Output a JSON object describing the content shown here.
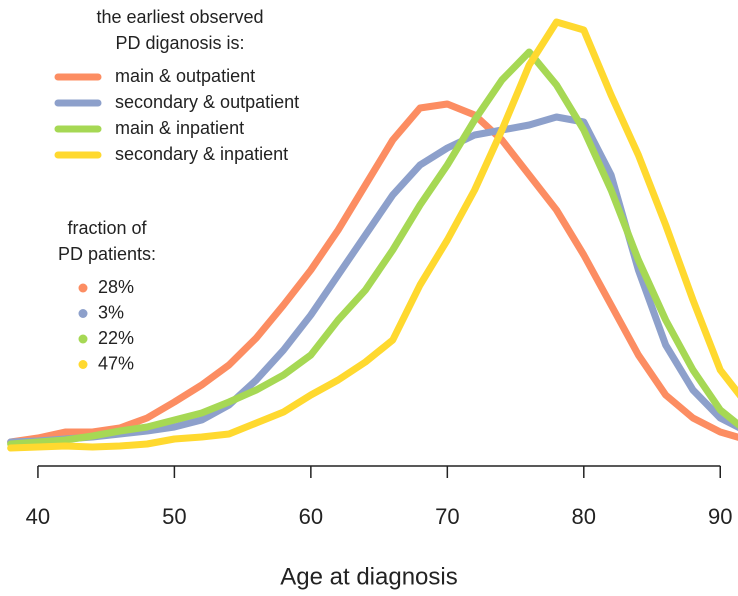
{
  "chart_data": {
    "type": "line",
    "x_label": "Age at diagnosis",
    "x": [
      38,
      40,
      42,
      44,
      46,
      48,
      50,
      52,
      54,
      56,
      58,
      60,
      62,
      64,
      66,
      68,
      70,
      72,
      74,
      76,
      78,
      80,
      82,
      84,
      86,
      88,
      90,
      92
    ],
    "xlim": [
      38.1,
      91.3
    ],
    "xticks": [
      40,
      50,
      60,
      70,
      80,
      90
    ],
    "ylim": [
      0,
      44.2
    ],
    "legend_title": [
      "the earliest observed",
      "PD diganosis is:"
    ],
    "series": [
      {
        "name": "main & outpatient",
        "color": "#fc8d62",
        "values": [
          1.0,
          1.4,
          2.0,
          2.0,
          2.4,
          3.4,
          5.0,
          6.7,
          8.7,
          11.4,
          14.7,
          18.2,
          22.2,
          26.7,
          31.2,
          34.4,
          34.8,
          33.7,
          31.2,
          27.7,
          24.2,
          19.7,
          14.7,
          9.7,
          5.7,
          3.4,
          2.0,
          1.2
        ]
      },
      {
        "name": "secondary & outpatient",
        "color": "#8da0cb",
        "values": [
          1.0,
          1.1,
          1.3,
          1.5,
          1.8,
          2.1,
          2.5,
          3.2,
          4.7,
          7.2,
          10.2,
          13.7,
          17.7,
          21.7,
          25.7,
          28.7,
          30.4,
          31.7,
          32.2,
          32.7,
          33.5,
          33.0,
          27.7,
          18.2,
          10.7,
          6.2,
          3.4,
          2.0
        ]
      },
      {
        "name": "main & inpatient",
        "color": "#a6d854",
        "values": [
          0.8,
          1.0,
          1.2,
          1.6,
          2.1,
          2.5,
          3.2,
          3.9,
          5.0,
          6.2,
          7.7,
          9.7,
          13.2,
          16.2,
          20.2,
          24.7,
          28.7,
          33.2,
          37.2,
          40.0,
          36.7,
          32.2,
          26.2,
          19.2,
          13.2,
          8.2,
          4.2,
          2.0
        ]
      },
      {
        "name": "secondary & inpatient",
        "color": "#ffd92f",
        "values": [
          0.4,
          0.5,
          0.6,
          0.5,
          0.6,
          0.8,
          1.3,
          1.5,
          1.8,
          2.9,
          4.0,
          5.7,
          7.2,
          9.0,
          11.2,
          16.7,
          21.2,
          26.2,
          32.2,
          38.7,
          43.0,
          42.2,
          35.7,
          29.7,
          22.7,
          15.2,
          8.2,
          4.7
        ]
      }
    ],
    "fractions": {
      "title": [
        "fraction of",
        "PD patients:"
      ],
      "values": [
        28,
        3,
        22,
        47
      ],
      "value_labels": [
        "28%",
        "3%",
        "22%",
        "47%"
      ]
    }
  }
}
